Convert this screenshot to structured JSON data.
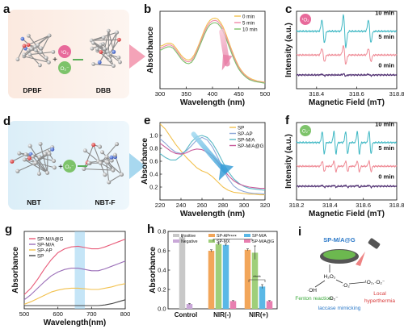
{
  "panels": {
    "a": {
      "letter": "a",
      "reactant": "DPBF",
      "product": "DBB",
      "ros1": "¹O₂",
      "ros2": "O₂⁻"
    },
    "d": {
      "letter": "d",
      "reactant": "NBT",
      "product": "NBT-F",
      "ros": "O₂⁻"
    },
    "i": {
      "letter": "i",
      "material": "SP-M/A@G",
      "h2o2": "H₂O₂",
      "oh": "·OH",
      "fenton": "Fenton reaction",
      "o2a": "·O₂",
      "o2b": "·O₂⁻",
      "ros_pair": "¹O₂,·O₂⁻",
      "laccase": "laccase mimicking",
      "hyper1": "Local",
      "hyper2": "hyperthermia"
    }
  },
  "chart_data": [
    {
      "id": "b",
      "letter": "b",
      "type": "line",
      "xlabel": "Wavelength (nm)",
      "ylabel": "Absorbance",
      "xlim": [
        300,
        500
      ],
      "xticks": [
        300,
        350,
        400,
        450,
        500
      ],
      "ylim": [
        0,
        1.7
      ],
      "series": [
        {
          "name": "0 min",
          "color": "#f2c14e",
          "x": [
            300,
            305,
            310,
            315,
            320,
            325,
            330,
            335,
            340,
            345,
            350,
            355,
            360,
            365,
            370,
            375,
            380,
            385,
            390,
            395,
            400,
            405,
            410,
            415,
            420,
            425,
            430,
            435,
            440,
            445,
            450,
            455,
            460,
            465,
            470,
            475,
            480,
            485,
            490,
            495,
            500
          ],
          "y": [
            0.93,
            0.95,
            0.98,
            1.0,
            1.0,
            0.97,
            0.9,
            0.82,
            0.74,
            0.68,
            0.64,
            0.63,
            0.66,
            0.74,
            0.86,
            1.0,
            1.15,
            1.3,
            1.42,
            1.5,
            1.54,
            1.55,
            1.53,
            1.46,
            1.36,
            1.22,
            1.06,
            0.9,
            0.75,
            0.61,
            0.49,
            0.4,
            0.33,
            0.28,
            0.24,
            0.21,
            0.19,
            0.17,
            0.16,
            0.15,
            0.14
          ]
        },
        {
          "name": "5 min",
          "color": "#f08aa8",
          "x": [
            300,
            305,
            310,
            315,
            320,
            325,
            330,
            335,
            340,
            345,
            350,
            355,
            360,
            365,
            370,
            375,
            380,
            385,
            390,
            395,
            400,
            405,
            410,
            415,
            420,
            425,
            430,
            435,
            440,
            445,
            450,
            455,
            460,
            465,
            470,
            475,
            480,
            485,
            490,
            495,
            500
          ],
          "y": [
            0.88,
            0.91,
            0.94,
            0.96,
            0.96,
            0.93,
            0.86,
            0.78,
            0.7,
            0.64,
            0.6,
            0.59,
            0.62,
            0.7,
            0.82,
            0.96,
            1.1,
            1.25,
            1.37,
            1.45,
            1.49,
            1.5,
            1.48,
            1.41,
            1.31,
            1.17,
            1.02,
            0.86,
            0.71,
            0.58,
            0.46,
            0.38,
            0.31,
            0.26,
            0.22,
            0.19,
            0.17,
            0.16,
            0.15,
            0.14,
            0.13
          ]
        },
        {
          "name": "10 min",
          "color": "#7ec06a",
          "x": [
            300,
            305,
            310,
            315,
            320,
            325,
            330,
            335,
            340,
            345,
            350,
            355,
            360,
            365,
            370,
            375,
            380,
            385,
            390,
            395,
            400,
            405,
            410,
            415,
            420,
            425,
            430,
            435,
            440,
            445,
            450,
            455,
            460,
            465,
            470,
            475,
            480,
            485,
            490,
            495,
            500
          ],
          "y": [
            0.84,
            0.87,
            0.9,
            0.92,
            0.92,
            0.89,
            0.82,
            0.74,
            0.66,
            0.6,
            0.56,
            0.55,
            0.58,
            0.66,
            0.78,
            0.92,
            1.06,
            1.2,
            1.32,
            1.4,
            1.44,
            1.45,
            1.43,
            1.36,
            1.26,
            1.12,
            0.97,
            0.82,
            0.67,
            0.54,
            0.43,
            0.35,
            0.29,
            0.24,
            0.2,
            0.18,
            0.16,
            0.15,
            0.14,
            0.13,
            0.12
          ]
        }
      ]
    },
    {
      "id": "c",
      "letter": "c",
      "type": "line",
      "xlabel": "Magnetic Field (mT)",
      "ylabel": "Intensity (a.u.)",
      "xlim": [
        318.3,
        318.8
      ],
      "xticks": [
        318.4,
        318.6,
        318.8
      ],
      "ylim": [
        -1,
        5.2
      ],
      "tag": "¹O₂",
      "series": [
        {
          "name": "10 min",
          "color": "#3fb8c4",
          "offset": 3.6,
          "amp": 0.95
        },
        {
          "name": "5 min",
          "color": "#ef8a95",
          "offset": 1.7,
          "amp": 0.55
        },
        {
          "name": "0 min",
          "color": "#4b2a6e",
          "offset": 0.1,
          "amp": 0.06
        }
      ],
      "lines": [
        318.433,
        318.54,
        318.665
      ]
    },
    {
      "id": "e",
      "letter": "e",
      "type": "line",
      "xlabel": "Wavelength (nm)",
      "ylabel": "Absorbance",
      "xlim": [
        220,
        320
      ],
      "xticks": [
        220,
        240,
        260,
        280,
        300,
        320
      ],
      "ylim": [
        0,
        1.2
      ],
      "yticks": [
        0.2,
        0.4,
        0.6,
        0.8,
        1.0
      ],
      "series": [
        {
          "name": "SP",
          "color": "#f2c14e",
          "x": [
            220,
            225,
            230,
            235,
            240,
            245,
            250,
            255,
            260,
            265,
            270,
            275,
            280,
            285,
            290,
            295,
            300,
            305,
            310,
            315,
            320
          ],
          "y": [
            1.18,
            1.1,
            0.98,
            0.86,
            0.76,
            0.66,
            0.58,
            0.5,
            0.45,
            0.42,
            0.36,
            0.28,
            0.2,
            0.15,
            0.12,
            0.11,
            0.1,
            0.09,
            0.09,
            0.08,
            0.08
          ]
        },
        {
          "name": "SP-AP",
          "color": "#8fa8d8",
          "x": [
            220,
            225,
            230,
            235,
            240,
            245,
            250,
            255,
            260,
            265,
            270,
            275,
            280,
            285,
            290,
            295,
            300,
            305,
            310,
            315,
            320
          ],
          "y": [
            0.95,
            0.88,
            0.8,
            0.74,
            0.72,
            0.76,
            0.84,
            0.93,
            0.97,
            0.93,
            0.82,
            0.66,
            0.48,
            0.33,
            0.22,
            0.16,
            0.13,
            0.11,
            0.1,
            0.1,
            0.09
          ]
        },
        {
          "name": "SP-M/A",
          "color": "#5ab8c6",
          "x": [
            220,
            225,
            230,
            235,
            240,
            245,
            250,
            255,
            260,
            265,
            270,
            275,
            280,
            285,
            290,
            295,
            300,
            305,
            310,
            315,
            320
          ],
          "y": [
            0.72,
            0.66,
            0.62,
            0.62,
            0.68,
            0.78,
            0.9,
            0.98,
            1.0,
            0.97,
            0.88,
            0.74,
            0.58,
            0.44,
            0.33,
            0.26,
            0.21,
            0.18,
            0.17,
            0.16,
            0.15
          ]
        },
        {
          "name": "SP-M/A@G",
          "color": "#c85a9a",
          "x": [
            220,
            225,
            230,
            235,
            240,
            245,
            250,
            255,
            260,
            265,
            270,
            275,
            280,
            285,
            290,
            295,
            300,
            305,
            310,
            315,
            320
          ],
          "y": [
            0.88,
            0.82,
            0.76,
            0.72,
            0.71,
            0.73,
            0.77,
            0.79,
            0.78,
            0.74,
            0.68,
            0.59,
            0.48,
            0.38,
            0.3,
            0.25,
            0.22,
            0.2,
            0.19,
            0.18,
            0.18
          ]
        }
      ]
    },
    {
      "id": "f",
      "letter": "f",
      "type": "line",
      "xlabel": "Magnetic Field (mT)",
      "ylabel": "Intensity (a.u.)",
      "xlim": [
        318.2,
        318.8
      ],
      "xticks": [
        318.2,
        318.4,
        318.6,
        318.8
      ],
      "ylim": [
        -1,
        5.2
      ],
      "tag": "·O₂⁻",
      "series": [
        {
          "name": "10 min",
          "color": "#3fb8c4",
          "offset": 3.6,
          "amp": 0.95
        },
        {
          "name": "5 min",
          "color": "#ef8a95",
          "offset": 1.7,
          "amp": 0.45
        },
        {
          "name": "0 min",
          "color": "#4b2a6e",
          "offset": 0.1,
          "amp": 0.08
        }
      ],
      "lines": [
        318.36,
        318.43,
        318.5,
        318.57,
        318.64
      ]
    },
    {
      "id": "g",
      "letter": "g",
      "type": "line",
      "xlabel": "Wavelength(nm)",
      "ylabel": "Absorbance",
      "xlim": [
        500,
        800
      ],
      "xticks": [
        500,
        600,
        700,
        800
      ],
      "ylim": [
        0,
        1.2
      ],
      "highlight": [
        650,
        680
      ],
      "series": [
        {
          "name": "SP-M/A@G",
          "color": "#e85a78",
          "x": [
            500,
            520,
            540,
            560,
            580,
            600,
            620,
            640,
            660,
            680,
            700,
            720,
            740,
            760,
            780,
            800
          ],
          "y": [
            0.22,
            0.32,
            0.46,
            0.62,
            0.76,
            0.87,
            0.93,
            0.96,
            0.97,
            0.95,
            0.93,
            0.93,
            0.96,
            1.0,
            1.04,
            1.08
          ]
        },
        {
          "name": "SP-M/A",
          "color": "#9b6fb8",
          "x": [
            500,
            520,
            540,
            560,
            580,
            600,
            620,
            640,
            660,
            680,
            700,
            720,
            740,
            760,
            780,
            800
          ],
          "y": [
            0.14,
            0.22,
            0.32,
            0.42,
            0.51,
            0.57,
            0.61,
            0.63,
            0.63,
            0.61,
            0.59,
            0.59,
            0.62,
            0.66,
            0.7,
            0.74
          ]
        },
        {
          "name": "SP-AP",
          "color": "#f2c14e",
          "x": [
            500,
            520,
            540,
            560,
            580,
            600,
            620,
            640,
            660,
            680,
            700,
            720,
            740,
            760,
            780,
            800
          ],
          "y": [
            0.07,
            0.11,
            0.16,
            0.21,
            0.26,
            0.29,
            0.31,
            0.32,
            0.32,
            0.31,
            0.3,
            0.3,
            0.32,
            0.34,
            0.37,
            0.39
          ]
        },
        {
          "name": "SP",
          "color": "#444444",
          "x": [
            500,
            520,
            540,
            560,
            580,
            600,
            620,
            640,
            660,
            680,
            700,
            720,
            740,
            760,
            780,
            800
          ],
          "y": [
            0.05,
            0.05,
            0.05,
            0.05,
            0.05,
            0.05,
            0.05,
            0.05,
            0.05,
            0.05,
            0.05,
            0.05,
            0.06,
            0.08,
            0.11,
            0.14
          ]
        }
      ]
    },
    {
      "id": "h",
      "letter": "h",
      "type": "bar",
      "xlabel": "",
      "ylabel": "Absorbance",
      "ylim": [
        0,
        0.8
      ],
      "yticks": [
        0.0,
        0.2,
        0.4,
        0.6,
        0.8
      ],
      "categories": [
        "Control",
        "NIR(-)",
        "NIR(+)"
      ],
      "legend": [
        {
          "name": "Positive",
          "color": "#c8c8c8"
        },
        {
          "name": "Negative",
          "color": "#c9a8d8"
        },
        {
          "name": "SP-AP",
          "color": "#f2a65a"
        },
        {
          "name": "SP-MX",
          "color": "#9fcf7a"
        },
        {
          "name": "SP-M/A",
          "color": "#5ab8e6"
        },
        {
          "name": "SP-M/A@G",
          "color": "#e87fb0"
        }
      ],
      "groups": [
        {
          "bars": [
            {
              "color": "#c8c8c8",
              "value": 0.74,
              "err": 0.01
            },
            {
              "color": "#c9a8d8",
              "value": 0.05,
              "err": 0.005
            }
          ]
        },
        {
          "bars": [
            {
              "color": "#f2a65a",
              "value": 0.6,
              "err": 0.01
            },
            {
              "color": "#9fcf7a",
              "value": 0.67,
              "err": 0.01
            },
            {
              "color": "#5ab8e6",
              "value": 0.66,
              "err": 0.01
            },
            {
              "color": "#e87fb0",
              "value": 0.08,
              "err": 0.005
            }
          ]
        },
        {
          "bars": [
            {
              "color": "#f2a65a",
              "value": 0.61,
              "err": 0.01
            },
            {
              "color": "#9fcf7a",
              "value": 0.58,
              "err": 0.07
            },
            {
              "color": "#5ab8e6",
              "value": 0.23,
              "err": 0.02
            },
            {
              "color": "#e87fb0",
              "value": 0.08,
              "err": 0.005
            }
          ]
        }
      ],
      "stars": "****"
    }
  ]
}
